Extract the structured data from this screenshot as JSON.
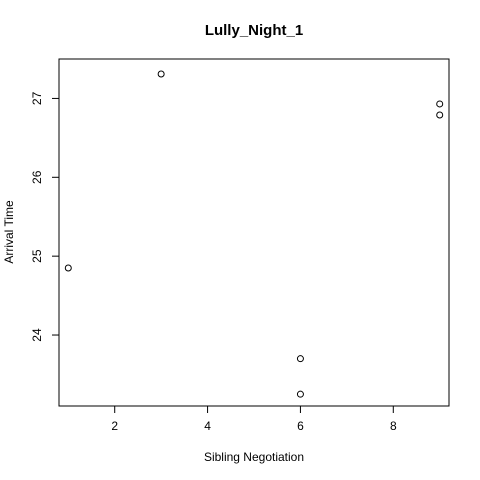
{
  "chart_data": {
    "type": "scatter",
    "title": "Lully_Night_1",
    "xlabel": "Sibling Negotiation",
    "ylabel": "Arrival Time",
    "xlim": [
      0.8,
      9.2
    ],
    "ylim": [
      23.1,
      27.5
    ],
    "xticks": [
      2,
      4,
      6,
      8
    ],
    "yticks": [
      24,
      25,
      26,
      27
    ],
    "grid": false,
    "points": [
      {
        "x": 1,
        "y": 24.85
      },
      {
        "x": 3,
        "y": 27.31
      },
      {
        "x": 6,
        "y": 23.7
      },
      {
        "x": 6,
        "y": 23.25
      },
      {
        "x": 9,
        "y": 26.93
      },
      {
        "x": 9,
        "y": 26.79
      }
    ]
  }
}
